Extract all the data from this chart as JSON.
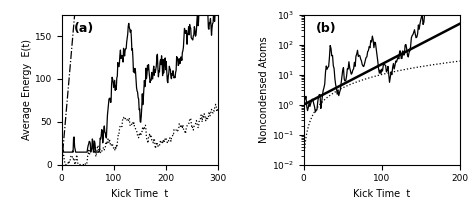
{
  "panel_a": {
    "title": "(a)",
    "xlabel": "Kick Time  t",
    "ylabel": "Average Energy  E(t)",
    "xlim": [
      0,
      300
    ],
    "ylim": [
      0,
      175
    ],
    "yticks": [
      0,
      50,
      100,
      150
    ],
    "xticks": [
      0,
      100,
      200,
      300
    ]
  },
  "panel_b": {
    "title": "(b)",
    "xlabel": "Kick Time  t",
    "ylabel": "Noncondensed Atoms",
    "xlim": [
      0,
      200
    ],
    "ylim_log": [
      -2,
      3
    ],
    "xticks": [
      0,
      100,
      200
    ]
  }
}
